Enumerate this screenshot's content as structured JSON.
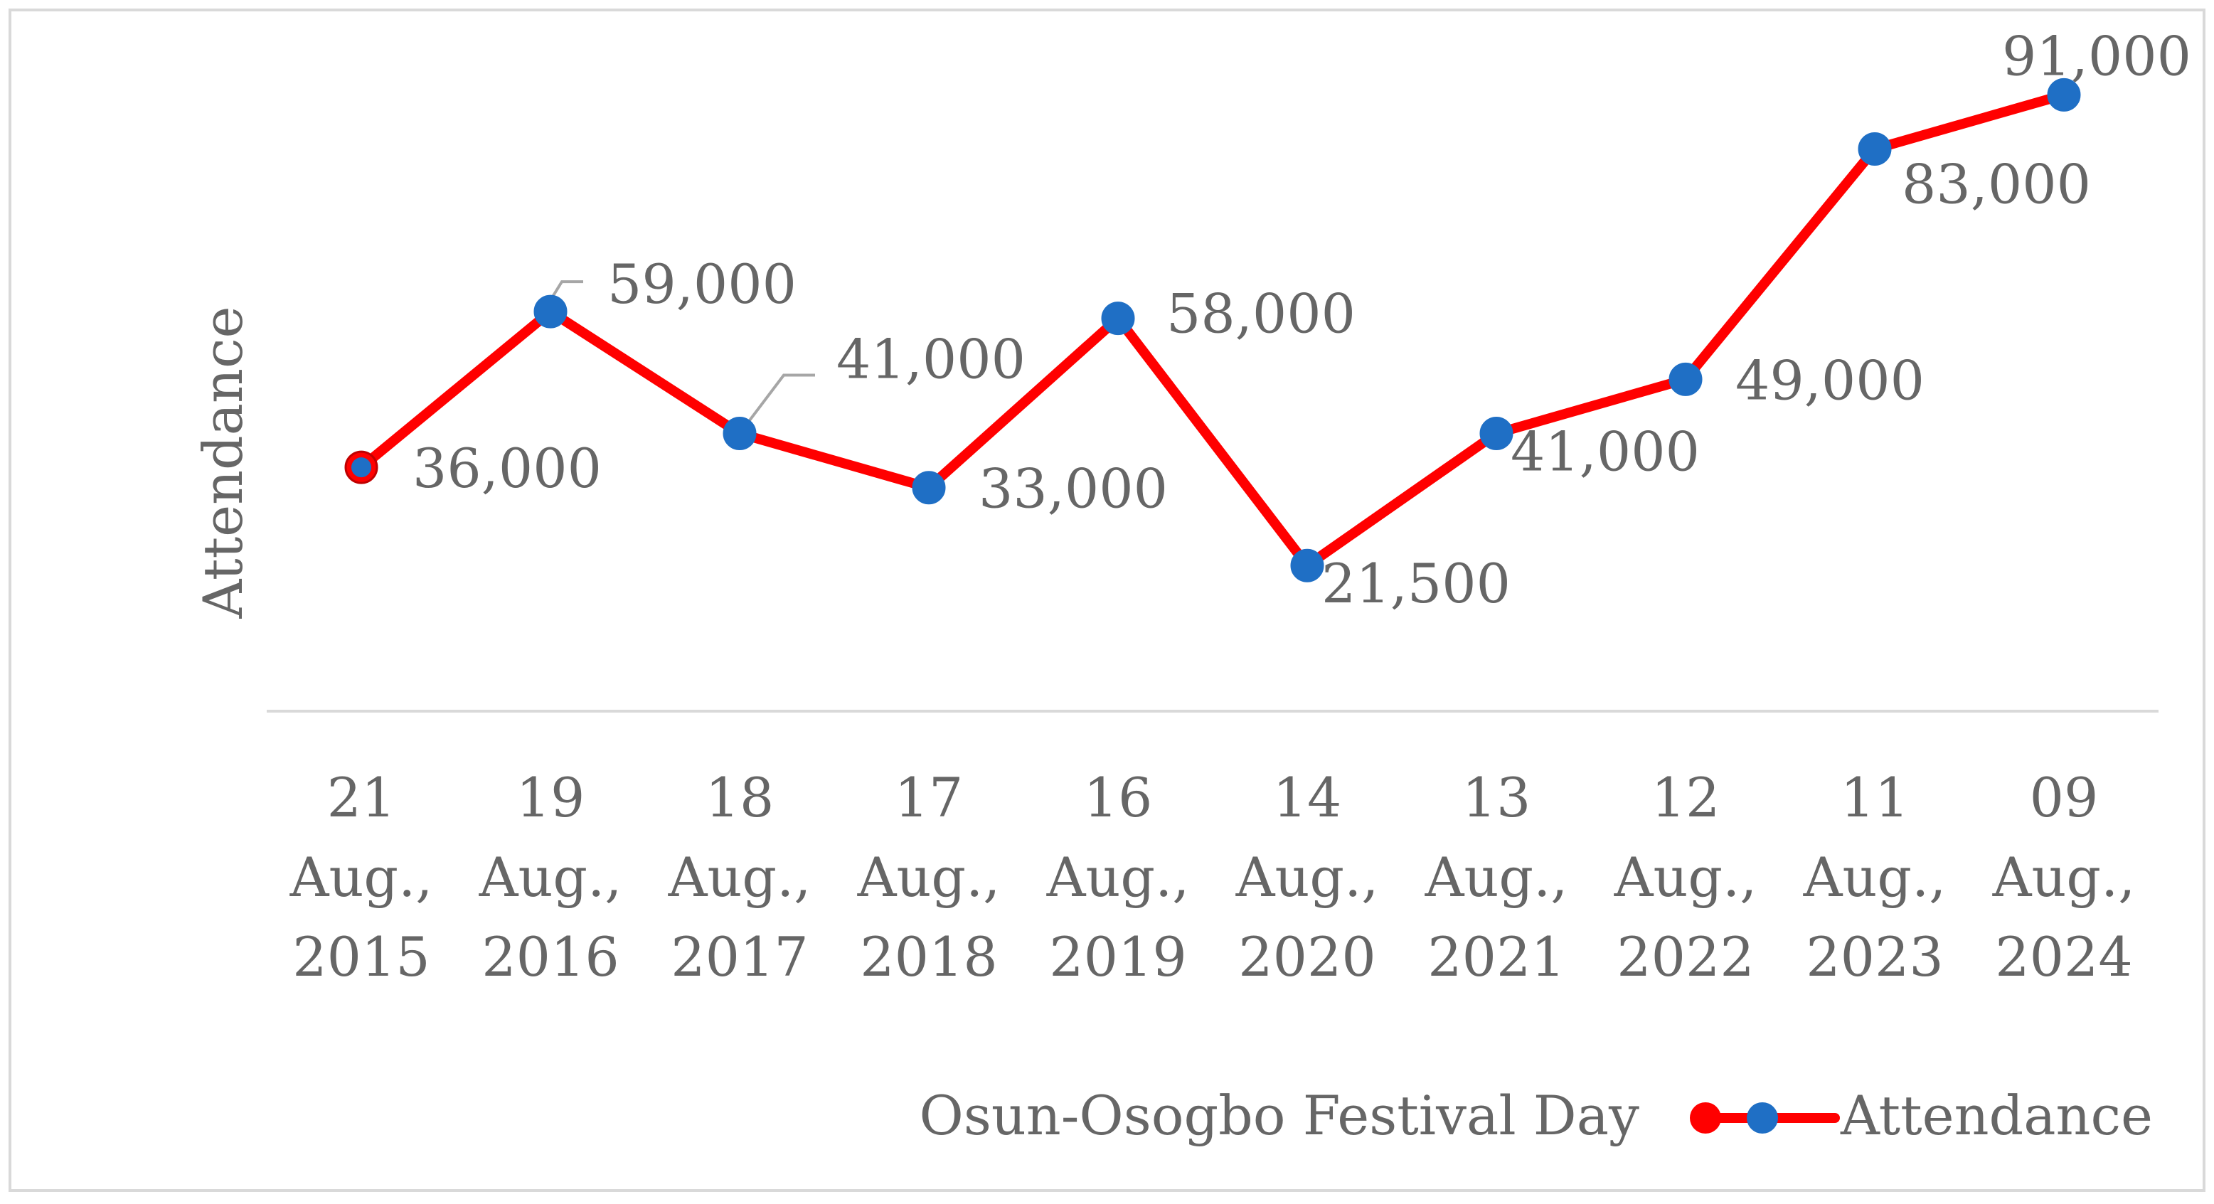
{
  "chart_data": {
    "type": "line",
    "title": "",
    "xlabel": "Osun-Osogbo Festival Day",
    "ylabel": "Attendance",
    "categories": [
      [
        "21",
        "Aug.,",
        "2015"
      ],
      [
        "19",
        "Aug.,",
        "2016"
      ],
      [
        "18",
        "Aug.,",
        "2017"
      ],
      [
        "17",
        "Aug.,",
        "2018"
      ],
      [
        "16",
        "Aug.,",
        "2019"
      ],
      [
        "14",
        "Aug.,",
        "2020"
      ],
      [
        "13",
        "Aug.,",
        "2021"
      ],
      [
        "12",
        "Aug.,",
        "2022"
      ],
      [
        "11",
        "Aug.,",
        "2023"
      ],
      [
        "09",
        "Aug.,",
        "2024"
      ]
    ],
    "series": [
      {
        "name": "Attendance",
        "values": [
          36000,
          59000,
          41000,
          33000,
          58000,
          21500,
          41000,
          49000,
          83000,
          91000
        ],
        "data_labels": [
          "36,000",
          "59,000",
          "41,000",
          "33,000",
          "58,000",
          "21,500",
          "41,000",
          "49,000",
          "83,000",
          "91,000"
        ]
      }
    ],
    "ylim": [
      0,
      105000
    ],
    "y_axis_visible": false,
    "grid": false,
    "legend": "bottom-right",
    "colors": {
      "line": "#ff0000",
      "marker": "#1f6fc5",
      "first_marker": "#ff0000",
      "text": "#666666",
      "axis": "#d9d9d9",
      "frame": "#d9d9d9"
    }
  }
}
